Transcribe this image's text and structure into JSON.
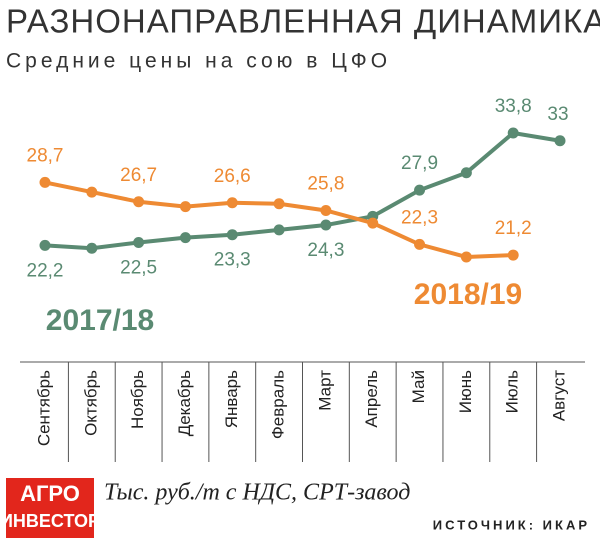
{
  "chart_data": {
    "type": "line",
    "title": "РАЗНОНАПРАВЛЕННАЯ ДИНАМИКА",
    "subtitle": "Средние цены на сою в ЦФО",
    "categories": [
      "Сентябрь",
      "Октябрь",
      "Ноябрь",
      "Декабрь",
      "Январь",
      "Февраль",
      "Март",
      "Апрель",
      "Май",
      "Июнь",
      "Июль",
      "Август"
    ],
    "series": [
      {
        "name": "2017/18",
        "color": "#5a8a72",
        "values": [
          22.2,
          21.9,
          22.5,
          23.0,
          23.3,
          23.8,
          24.3,
          25.2,
          27.9,
          29.7,
          33.8,
          33
        ],
        "value_labels": [
          "22,2",
          null,
          "22,5",
          null,
          "23,3",
          null,
          "24,3",
          null,
          "27,9",
          null,
          "33,8",
          "33"
        ]
      },
      {
        "name": "2018/19",
        "color": "#ee8a33",
        "values": [
          28.7,
          27.7,
          26.7,
          26.2,
          26.6,
          26.5,
          25.8,
          24.5,
          22.3,
          21.0,
          21.2,
          null
        ],
        "value_labels": [
          "28,7",
          null,
          "26,7",
          null,
          "26,6",
          null,
          "25,8",
          null,
          "22,3",
          null,
          "21,2",
          null
        ]
      }
    ],
    "unit_note": "Тыс. руб./т с НДС, СРТ-завод",
    "source": "ИСТОЧНИК: ИКАР",
    "logo": [
      "АГРО",
      "ИНВЕСТОР"
    ]
  }
}
